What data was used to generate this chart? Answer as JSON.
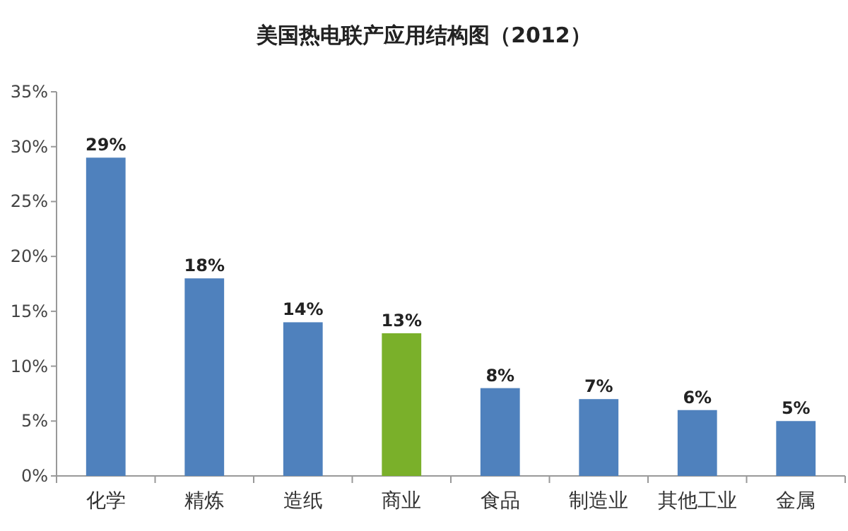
{
  "chart_data": {
    "type": "bar",
    "title": "美国热电联产应用结构图（2012）",
    "categories": [
      "化学",
      "精炼",
      "造纸",
      "商业",
      "食品",
      "制造业",
      "其他工业",
      "金属"
    ],
    "values": [
      29,
      18,
      14,
      13,
      8,
      7,
      6,
      5
    ],
    "colors": [
      "#4f81bd",
      "#4f81bd",
      "#4f81bd",
      "#7ab02a",
      "#4f81bd",
      "#4f81bd",
      "#4f81bd",
      "#4f81bd"
    ],
    "value_labels": [
      "29%",
      "18%",
      "14%",
      "13%",
      "8%",
      "7%",
      "6%",
      "5%"
    ],
    "ylim": [
      0,
      35
    ],
    "yticks": [
      {
        "value": 0,
        "label": "0%"
      },
      {
        "value": 5,
        "label": "5%"
      },
      {
        "value": 10,
        "label": "10%"
      },
      {
        "value": 15,
        "label": "15%"
      },
      {
        "value": 20,
        "label": "20%"
      },
      {
        "value": 25,
        "label": "25%"
      },
      {
        "value": 30,
        "label": "30%"
      },
      {
        "value": 35,
        "label": "35%"
      }
    ],
    "grid": false
  }
}
